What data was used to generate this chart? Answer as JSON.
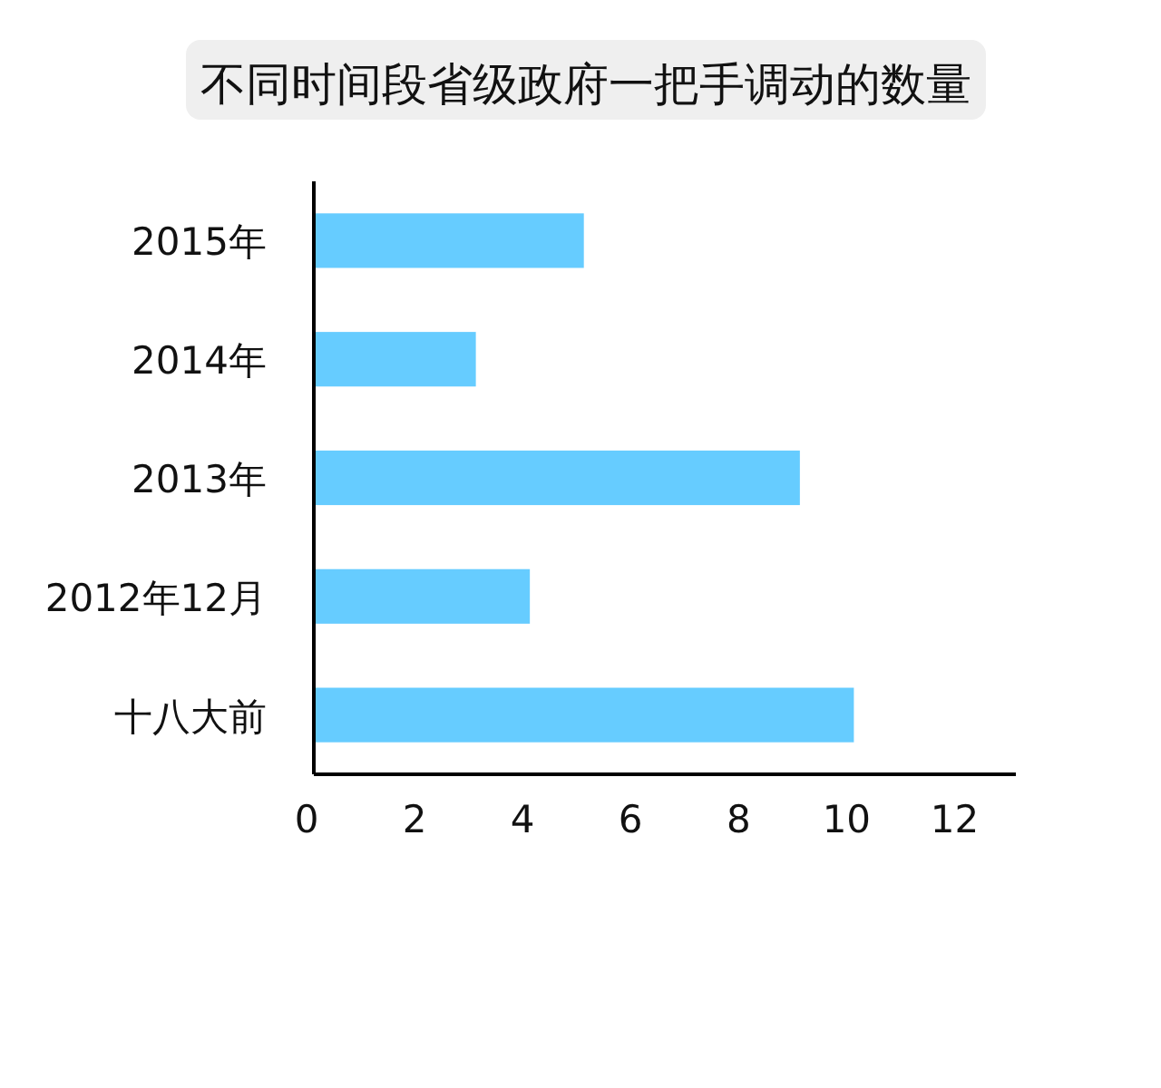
{
  "chart_data": {
    "type": "bar",
    "orientation": "horizontal",
    "title": "不同时间段省级政府一把手调动的数量",
    "categories": [
      "2015年",
      "2014年",
      "2013年",
      "2012年12月",
      "十八大前"
    ],
    "values": [
      5,
      3,
      9,
      4,
      10
    ],
    "color": "#66ccff",
    "xlim": [
      0,
      13
    ],
    "xticks": [
      0,
      2,
      4,
      6,
      8,
      10,
      12
    ]
  }
}
